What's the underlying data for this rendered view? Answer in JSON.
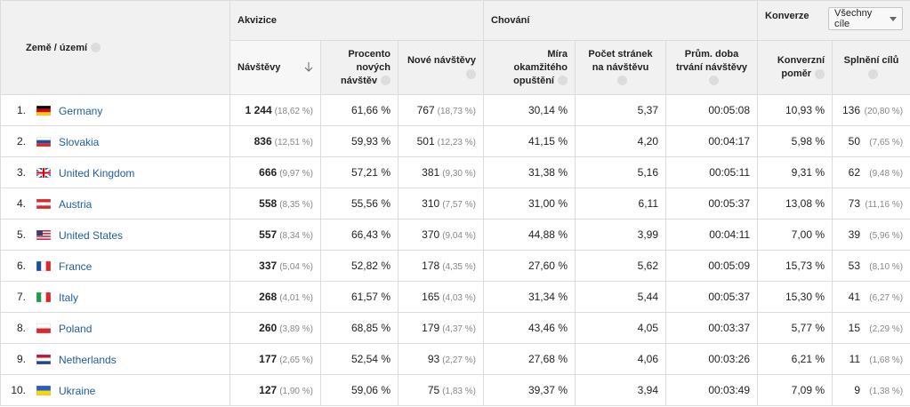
{
  "groups": {
    "acquisition": "Akvizice",
    "behavior": "Chování",
    "conversions": "Konverze",
    "goal_select": "Všechny cíle"
  },
  "columns": {
    "country": "Země / území",
    "visits": "Návštěvy",
    "new_pct": "Procento nových návštěv",
    "new_visits": "Nové návštěvy",
    "bounce": "Míra okamžitého opuštění",
    "pages": "Počet stránek na návštěvu",
    "duration": "Prům. doba trvání návštěvy",
    "conv_rate": "Konverzní poměr",
    "goals": "Splnění cílů"
  },
  "table": {
    "rows": [
      [
        "1.",
        "Germany",
        "1 244",
        "(18,62 %)",
        "61,66 %",
        "767",
        "(18,73 %)",
        "30,14 %",
        "5,37",
        "00:05:08",
        "10,93 %",
        "136",
        "(20,80 %)"
      ],
      [
        "2.",
        "Slovakia",
        "836",
        "(12,51 %)",
        "59,93 %",
        "501",
        "(12,23 %)",
        "41,15 %",
        "4,20",
        "00:04:17",
        "5,98 %",
        "50",
        "(7,65 %)"
      ],
      [
        "3.",
        "United Kingdom",
        "666",
        "(9,97 %)",
        "57,21 %",
        "381",
        "(9,30 %)",
        "31,38 %",
        "5,16",
        "00:05:11",
        "9,31 %",
        "62",
        "(9,48 %)"
      ],
      [
        "4.",
        "Austria",
        "558",
        "(8,35 %)",
        "55,56 %",
        "310",
        "(7,57 %)",
        "31,00 %",
        "6,11",
        "00:05:37",
        "13,08 %",
        "73",
        "(11,16 %)"
      ],
      [
        "5.",
        "United States",
        "557",
        "(8,34 %)",
        "66,43 %",
        "370",
        "(9,04 %)",
        "44,88 %",
        "3,99",
        "00:04:11",
        "7,00 %",
        "39",
        "(5,96 %)"
      ],
      [
        "6.",
        "France",
        "337",
        "(5,04 %)",
        "52,82 %",
        "178",
        "(4,35 %)",
        "27,60 %",
        "5,62",
        "00:05:09",
        "15,73 %",
        "53",
        "(8,10 %)"
      ],
      [
        "7.",
        "Italy",
        "268",
        "(4,01 %)",
        "61,57 %",
        "165",
        "(4,03 %)",
        "31,34 %",
        "5,44",
        "00:05:37",
        "15,30 %",
        "41",
        "(6,27 %)"
      ],
      [
        "8.",
        "Poland",
        "260",
        "(3,89 %)",
        "68,85 %",
        "179",
        "(4,37 %)",
        "43,46 %",
        "4,05",
        "00:03:37",
        "5,77 %",
        "15",
        "(2,29 %)"
      ],
      [
        "9.",
        "Netherlands",
        "177",
        "(2,65 %)",
        "52,54 %",
        "93",
        "(2,27 %)",
        "27,68 %",
        "4,06",
        "00:03:26",
        "6,21 %",
        "11",
        "(1,68 %)"
      ],
      [
        "10.",
        "Ukraine",
        "127",
        "(1,90 %)",
        "59,06 %",
        "75",
        "(1,83 %)",
        "39,37 %",
        "3,94",
        "00:03:49",
        "7,09 %",
        "9",
        "(1,38 %)"
      ]
    ]
  }
}
